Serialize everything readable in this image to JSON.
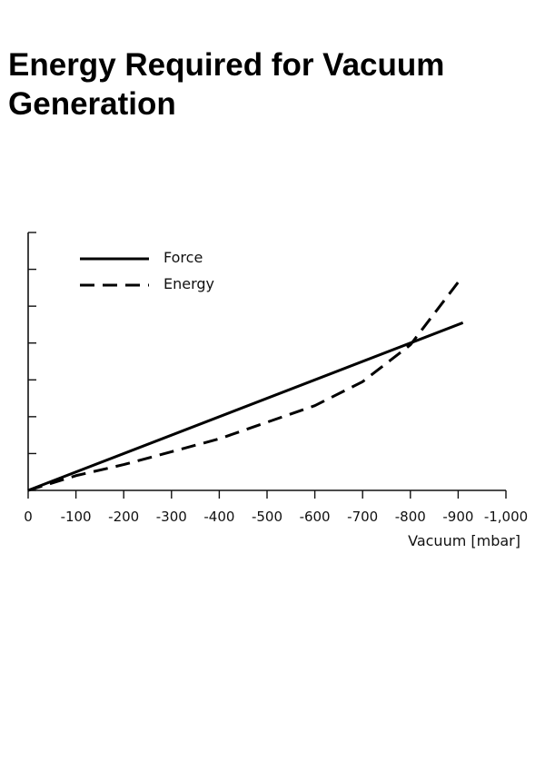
{
  "title": "Energy Required for Vacuum Generation",
  "chart_data": {
    "type": "line",
    "title": "Energy Required for Vacuum Generation",
    "xlabel": "Vacuum [mbar]",
    "ylabel": "",
    "xlim": [
      0,
      -1000
    ],
    "ylim": [
      0,
      7
    ],
    "x_ticks": [
      0,
      -100,
      -200,
      -300,
      -400,
      -500,
      -600,
      -700,
      -800,
      -900,
      -1000
    ],
    "x_tick_labels": [
      "0",
      "-100",
      "-200",
      "-300",
      "-400",
      "-500",
      "-600",
      "-700",
      "-800",
      "-900",
      "-1,000"
    ],
    "y_ticks": [
      0,
      1,
      2,
      3,
      4,
      5,
      6,
      7
    ],
    "y_tick_labels_shown": false,
    "grid": false,
    "legend_position": "top-left",
    "series": [
      {
        "name": "Force",
        "style": "solid",
        "color": "#000000",
        "points": [
          [
            0,
            0
          ],
          [
            -910,
            4.55
          ]
        ]
      },
      {
        "name": "Energy",
        "style": "dashed",
        "color": "#000000",
        "points": [
          [
            0,
            0
          ],
          [
            -100,
            0.4
          ],
          [
            -200,
            0.7
          ],
          [
            -300,
            1.05
          ],
          [
            -400,
            1.4
          ],
          [
            -500,
            1.85
          ],
          [
            -600,
            2.3
          ],
          [
            -700,
            2.95
          ],
          [
            -800,
            3.95
          ],
          [
            -900,
            5.65
          ]
        ]
      }
    ]
  }
}
